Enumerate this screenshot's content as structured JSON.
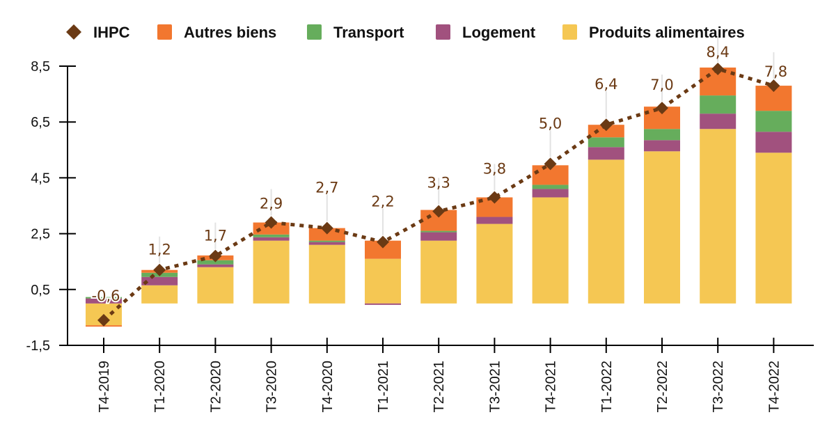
{
  "chart_data": {
    "type": "bar",
    "stacked": true,
    "title": "",
    "xlabel": "",
    "ylabel": "",
    "ylim": [
      -1.5,
      8.5
    ],
    "yticks": [
      "8,5",
      "6,5",
      "4,5",
      "2,5",
      "0,5",
      "-1,5"
    ],
    "ytick_values": [
      8.5,
      6.5,
      4.5,
      2.5,
      0.5,
      -1.5
    ],
    "grid": false,
    "legend_position": "top",
    "categories": [
      "T4-2019",
      "T1-2020",
      "T2-2020",
      "T3-2020",
      "T4-2020",
      "T1-2021",
      "T2-2021",
      "T3-2021",
      "T4-2021",
      "T1-2022",
      "T2-2022",
      "T3-2022",
      "T4-2022"
    ],
    "series": [
      {
        "name": "Produits alimentaires",
        "color": "#f5c753",
        "values": [
          -0.78,
          0.65,
          1.3,
          2.25,
          2.1,
          1.6,
          2.25,
          2.85,
          3.8,
          5.15,
          5.45,
          6.25,
          5.4
        ]
      },
      {
        "name": "Logement",
        "color": "#a1517e",
        "values": [
          0.18,
          0.3,
          0.1,
          0.12,
          0.1,
          -0.05,
          0.3,
          0.25,
          0.3,
          0.45,
          0.4,
          0.55,
          0.75
        ]
      },
      {
        "name": "Transport",
        "color": "#66ad5c",
        "values": [
          0.05,
          0.15,
          0.15,
          0.1,
          0.05,
          0.0,
          0.05,
          0.0,
          0.15,
          0.35,
          0.4,
          0.65,
          0.75
        ]
      },
      {
        "name": "Autres biens",
        "color": "#f2772f",
        "values": [
          -0.05,
          0.1,
          0.17,
          0.43,
          0.45,
          0.65,
          0.75,
          0.7,
          0.7,
          0.45,
          0.8,
          1.0,
          0.9
        ]
      }
    ],
    "line": {
      "name": "IHPC",
      "color": "#6b3a14",
      "style": "dotted",
      "marker": "diamond",
      "values": [
        -0.6,
        1.2,
        1.7,
        2.9,
        2.7,
        2.2,
        3.3,
        3.8,
        5.0,
        6.4,
        7.0,
        8.4,
        7.8
      ],
      "labels": [
        "-0,6",
        "1,2",
        "1,7",
        "2,9",
        "2,7",
        "2,2",
        "3,3",
        "3,8",
        "5,0",
        "6,4",
        "7,0",
        "8,4",
        "7,8"
      ]
    },
    "legend": [
      {
        "name": "IHPC",
        "color": "#6b3a14",
        "shape": "diamond"
      },
      {
        "name": "Autres biens",
        "color": "#f2772f",
        "shape": "square"
      },
      {
        "name": "Transport",
        "color": "#66ad5c",
        "shape": "square"
      },
      {
        "name": "Logement",
        "color": "#a1517e",
        "shape": "square"
      },
      {
        "name": "Produits alimentaires",
        "color": "#f5c753",
        "shape": "square"
      }
    ]
  }
}
